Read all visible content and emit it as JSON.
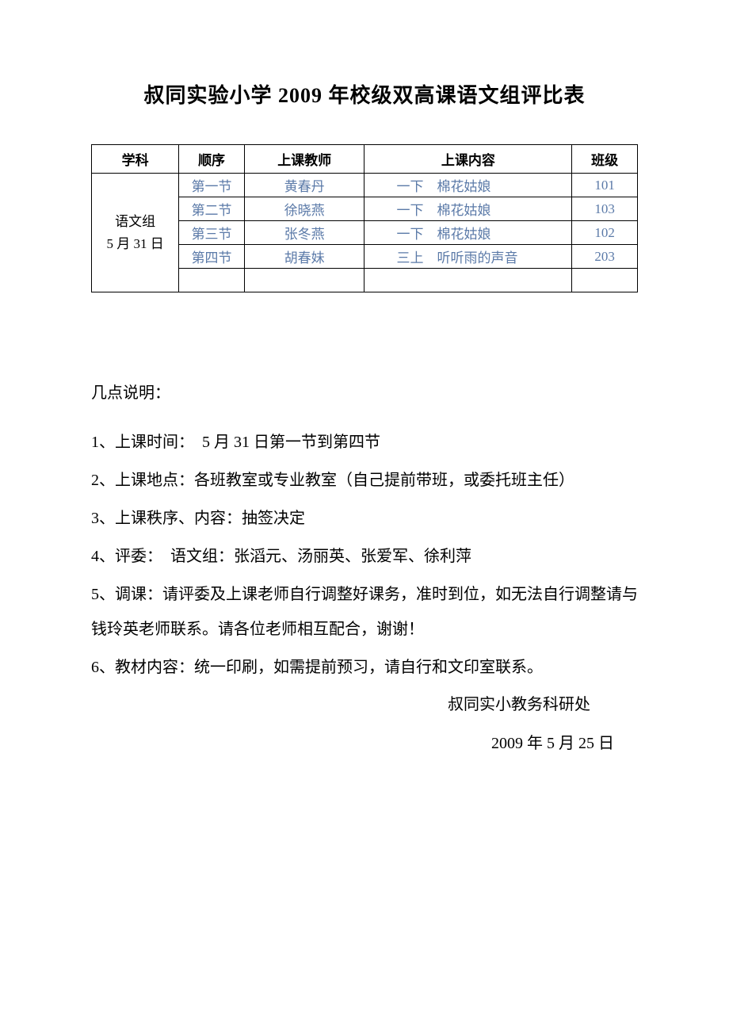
{
  "document": {
    "title": "叔同实验小学 2009 年校级双高课语文组评比表",
    "background_color": "#ffffff",
    "text_color": "#000000",
    "link_color": "#5b7aa8"
  },
  "table": {
    "headers": {
      "subject": "学科",
      "order": "顺序",
      "teacher": "上课教师",
      "content": "上课内容",
      "class": "班级"
    },
    "subject_group": "语文组\n5 月 31 日",
    "rows": [
      {
        "order": "第一节",
        "teacher": "黄春丹",
        "content": "一下　棉花姑娘",
        "class": "101"
      },
      {
        "order": "第二节",
        "teacher": "徐晓燕",
        "content": "一下　棉花姑娘",
        "class": "103"
      },
      {
        "order": "第三节",
        "teacher": "张冬燕",
        "content": "一下　棉花姑娘",
        "class": "102"
      },
      {
        "order": "第四节",
        "teacher": "胡春妹",
        "content": "三上　听听雨的声音",
        "class": "203"
      }
    ]
  },
  "notes": {
    "title": "几点说明：",
    "items": [
      "1、上课时间：　5 月 31 日第一节到第四节",
      "2、上课地点：各班教室或专业教室（自己提前带班，或委托班主任）",
      "3、上课秩序、内容：抽签决定",
      "4、评委：　语文组：张滔元、汤丽英、张爱军、徐利萍",
      "5、调课：请评委及上课老师自行调整好课务，准时到位，如无法自行调整请与钱玲英老师联系。请各位老师相互配合，谢谢！",
      "6、教材内容：统一印刷，如需提前预习，请自行和文印室联系。"
    ],
    "signature": "叔同实小教务科研处",
    "date": "2009 年 5 月 25 日"
  }
}
